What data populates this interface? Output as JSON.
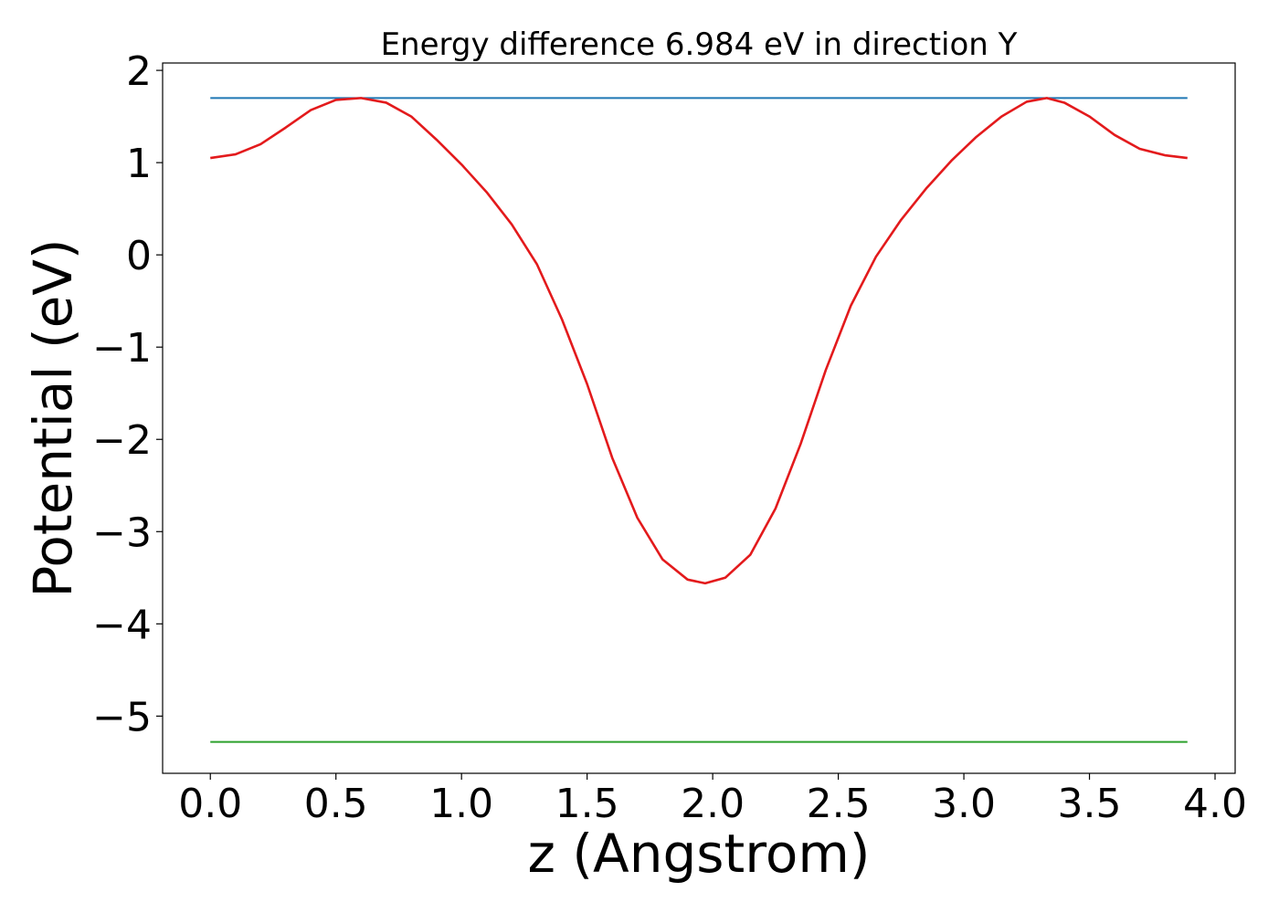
{
  "chart_data": {
    "type": "line",
    "title": "Energy difference 6.984 eV in direction Y",
    "xlabel": "z (Angstrom)",
    "ylabel": "Potential (eV)",
    "xlim": [
      -0.19,
      4.08
    ],
    "ylim": [
      -5.62,
      2.08
    ],
    "xticks": [
      0.0,
      0.5,
      1.0,
      1.5,
      2.0,
      2.5,
      3.0,
      3.5,
      4.0
    ],
    "xtick_labels": [
      "0.0",
      "0.5",
      "1.0",
      "1.5",
      "2.0",
      "2.5",
      "3.0",
      "3.5",
      "4.0"
    ],
    "yticks": [
      2,
      1,
      0,
      -1,
      -2,
      -3,
      -4,
      -5
    ],
    "ytick_labels": [
      "2",
      "1",
      "0",
      "−1",
      "−2",
      "−3",
      "−4",
      "−5"
    ],
    "grid": false,
    "series": [
      {
        "color": "#1f77b4",
        "x": [
          0.0,
          3.89
        ],
        "y": [
          1.7,
          1.7
        ]
      },
      {
        "color": "#2ca02c",
        "x": [
          0.0,
          3.89
        ],
        "y": [
          -5.28,
          -5.28
        ]
      },
      {
        "color": "#e31a1c",
        "x": [
          0.0,
          0.1,
          0.2,
          0.3,
          0.4,
          0.5,
          0.6,
          0.7,
          0.8,
          0.9,
          1.0,
          1.1,
          1.2,
          1.3,
          1.4,
          1.5,
          1.6,
          1.7,
          1.8,
          1.9,
          1.97,
          2.05,
          2.15,
          2.25,
          2.35,
          2.45,
          2.55,
          2.65,
          2.75,
          2.85,
          2.95,
          3.05,
          3.15,
          3.25,
          3.33,
          3.4,
          3.5,
          3.6,
          3.7,
          3.8,
          3.89
        ],
        "y": [
          1.05,
          1.09,
          1.2,
          1.38,
          1.57,
          1.68,
          1.7,
          1.65,
          1.5,
          1.25,
          0.98,
          0.68,
          0.33,
          -0.1,
          -0.7,
          -1.4,
          -2.2,
          -2.85,
          -3.3,
          -3.52,
          -3.56,
          -3.5,
          -3.25,
          -2.75,
          -2.05,
          -1.25,
          -0.55,
          -0.02,
          0.38,
          0.72,
          1.02,
          1.28,
          1.5,
          1.66,
          1.7,
          1.65,
          1.5,
          1.3,
          1.15,
          1.08,
          1.05
        ]
      }
    ]
  }
}
